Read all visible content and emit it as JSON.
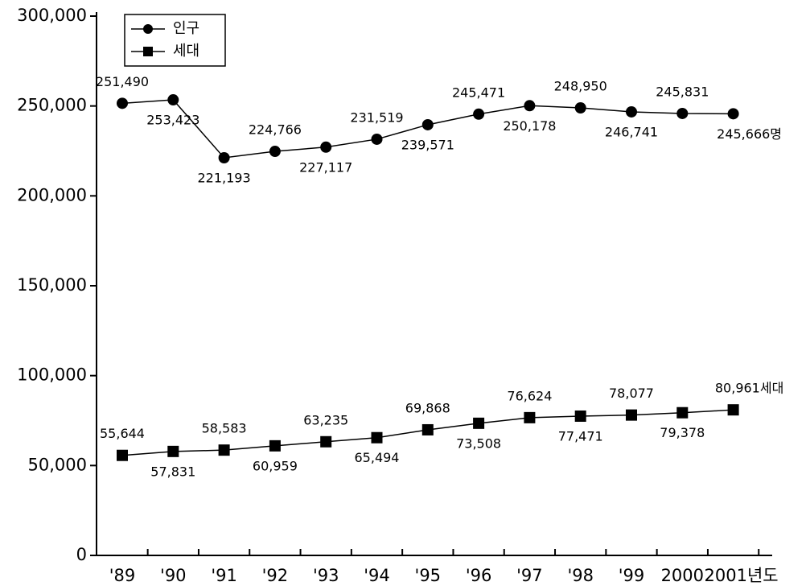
{
  "chart_data": {
    "type": "line",
    "categories": [
      "'89",
      "'90",
      "'91",
      "'92",
      "'93",
      "'94",
      "'95",
      "'96",
      "'97",
      "'98",
      "'99",
      "2000",
      "2001년도"
    ],
    "series": [
      {
        "name": "인구",
        "color": "#000000",
        "marker": "circle",
        "values": [
          251490,
          253423,
          221193,
          224766,
          227117,
          231519,
          239571,
          245471,
          250178,
          248950,
          246741,
          245831,
          245666
        ],
        "value_labels": [
          "251,490",
          "253,423",
          "221,193",
          "224,766",
          "227,117",
          "231,519",
          "239,571",
          "245,471",
          "250,178",
          "248,950",
          "246,741",
          "245,831",
          "245,666명"
        ]
      },
      {
        "name": "세대",
        "color": "#000000",
        "marker": "square",
        "values": [
          55644,
          57831,
          58583,
          60959,
          63235,
          65494,
          69868,
          73508,
          76624,
          77471,
          78077,
          79378,
          80961
        ],
        "value_labels": [
          "55,644",
          "57,831",
          "58,583",
          "60,959",
          "63,235",
          "65,494",
          "69,868",
          "73,508",
          "76,624",
          "77,471",
          "78,077",
          "79,378",
          "80,961세대"
        ]
      }
    ],
    "ylim": [
      0,
      300000
    ],
    "yticks": [
      0,
      {
        "value": 50000,
        "label": "50,000"
      },
      {
        "value": 100000,
        "label": "100,000"
      },
      {
        "value": 150000,
        "label": "150,000"
      },
      {
        "value": 200000,
        "label": "200,000"
      },
      {
        "value": 250000,
        "label": "250,000"
      },
      {
        "value": 300000,
        "label": "300,000"
      }
    ],
    "legend": "upper left"
  }
}
